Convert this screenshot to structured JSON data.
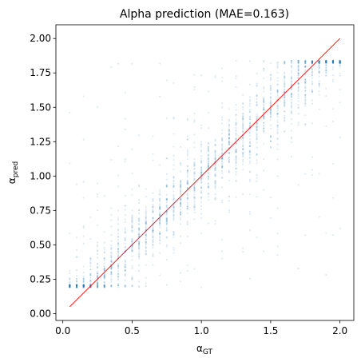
{
  "chart_data": {
    "type": "scatter",
    "title": "Alpha prediction (MAE=0.163)",
    "xlabel": {
      "base": "α",
      "sub": "GT"
    },
    "ylabel": {
      "base": "α",
      "sub": "pred"
    },
    "xlim": [
      -0.05,
      2.1
    ],
    "ylim": [
      -0.05,
      2.1
    ],
    "xticks": [
      0.0,
      0.5,
      1.0,
      1.5,
      2.0
    ],
    "xtick_labels": [
      "0.0",
      "0.5",
      "1.0",
      "1.5",
      "2.0"
    ],
    "yticks": [
      0.0,
      0.25,
      0.5,
      0.75,
      1.0,
      1.25,
      1.5,
      1.75,
      2.0
    ],
    "ytick_labels": [
      "0.00",
      "0.25",
      "0.50",
      "0.75",
      "1.00",
      "1.25",
      "1.50",
      "1.75",
      "2.00"
    ],
    "grid": false,
    "legend": "none",
    "scatter_color": "#1f77b4",
    "scatter_alpha": 0.15,
    "gt_levels": [
      0.05,
      0.1,
      0.15,
      0.2,
      0.25,
      0.3,
      0.35,
      0.4,
      0.45,
      0.5,
      0.55,
      0.6,
      0.65,
      0.7,
      0.75,
      0.8,
      0.85,
      0.9,
      0.95,
      1.0,
      1.05,
      1.1,
      1.15,
      1.2,
      1.25,
      1.3,
      1.35,
      1.4,
      1.45,
      1.5,
      1.55,
      1.6,
      1.65,
      1.7,
      1.75,
      1.8,
      1.85,
      1.9,
      1.95,
      2.0
    ],
    "pred_clip_range": [
      0.19,
      1.84
    ],
    "reference_line": {
      "x": [
        0.05,
        2.0
      ],
      "y": [
        0.05,
        2.0
      ],
      "color": "#ff0000"
    }
  }
}
